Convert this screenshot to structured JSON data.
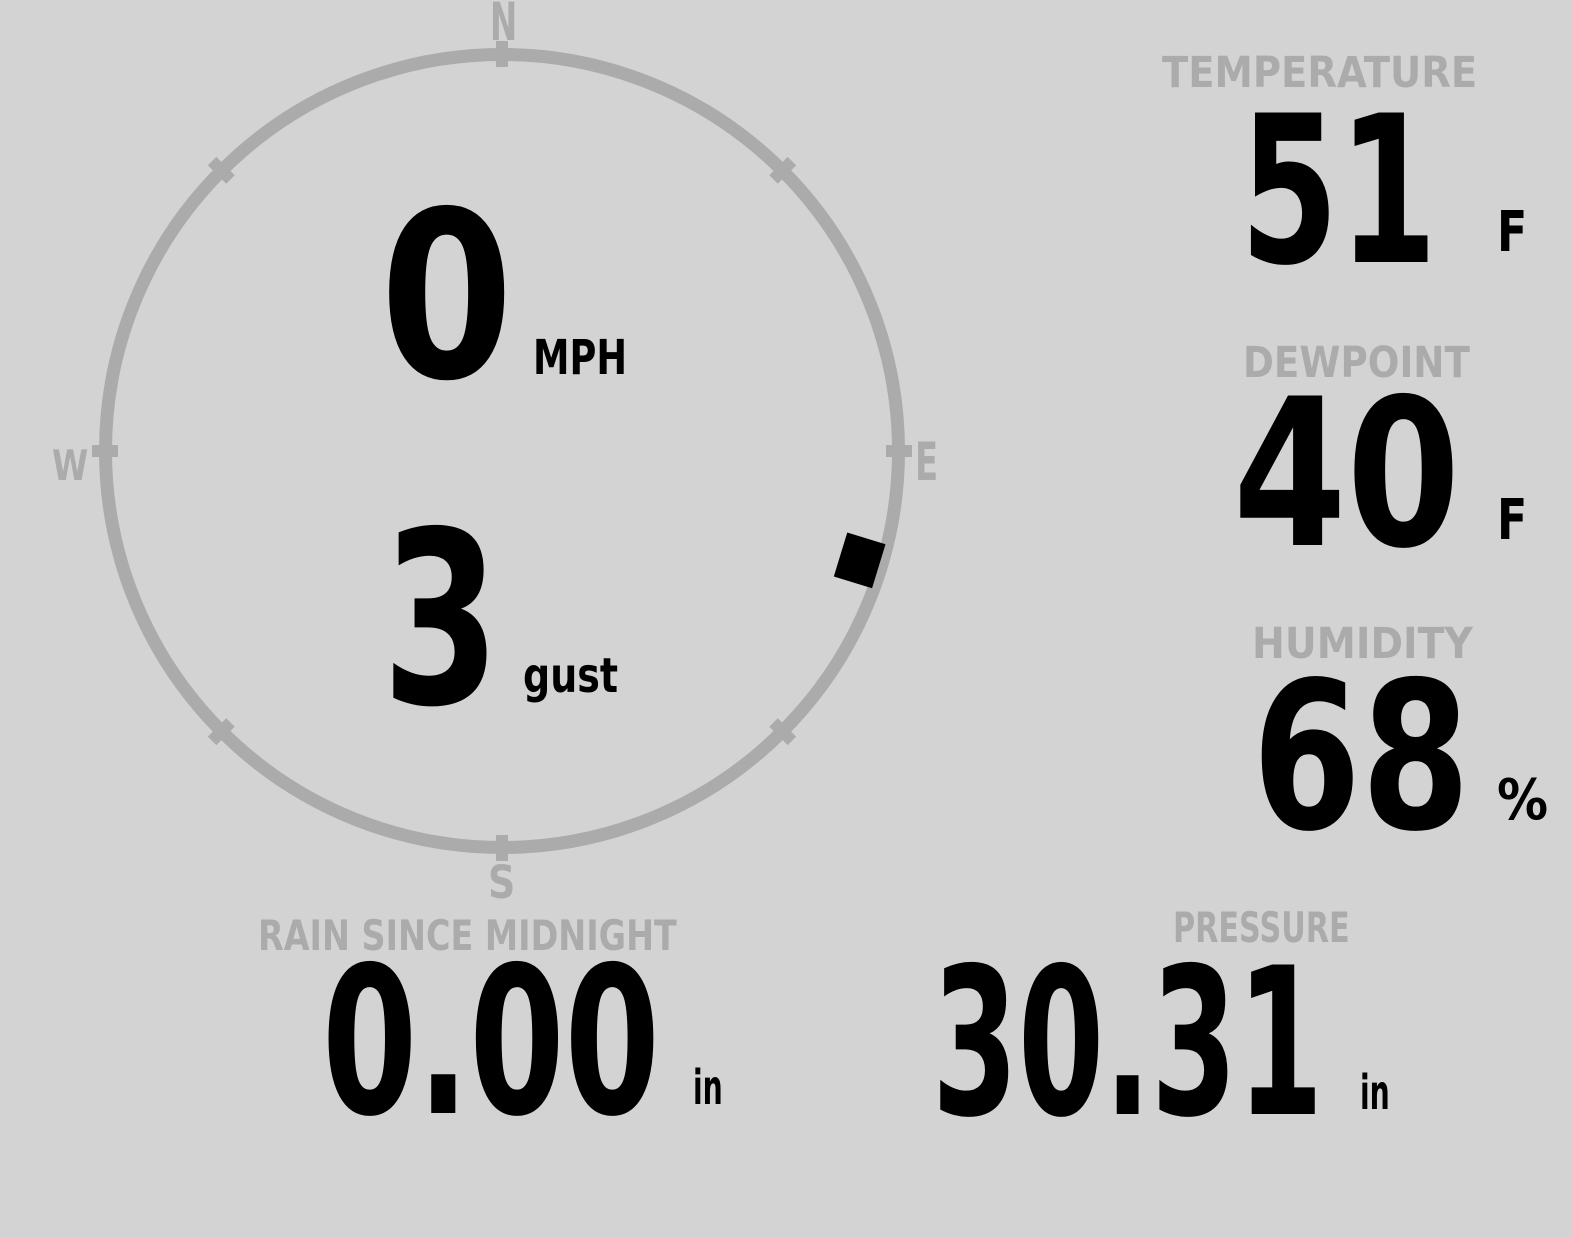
{
  "compass": {
    "directions": {
      "n": "N",
      "e": "E",
      "s": "S",
      "w": "W"
    },
    "speed": {
      "value": "0",
      "unit": "MPH"
    },
    "gust": {
      "value": "3",
      "unit": "gust"
    },
    "direction_deg": 107
  },
  "metrics": {
    "temperature": {
      "label": "TEMPERATURE",
      "value": "51",
      "unit": "F"
    },
    "dewpoint": {
      "label": "DEWPOINT",
      "value": "40",
      "unit": "F"
    },
    "humidity": {
      "label": "HUMIDITY",
      "value": "68",
      "unit": "%"
    },
    "rain": {
      "label": "RAIN SINCE MIDNIGHT",
      "value": "0.00",
      "unit": "in"
    },
    "pressure": {
      "label": "PRESSURE",
      "value": "30.31",
      "unit": "in"
    }
  },
  "colors": {
    "background": "#d3d3d3",
    "muted": "#ababab",
    "value": "#000000"
  }
}
